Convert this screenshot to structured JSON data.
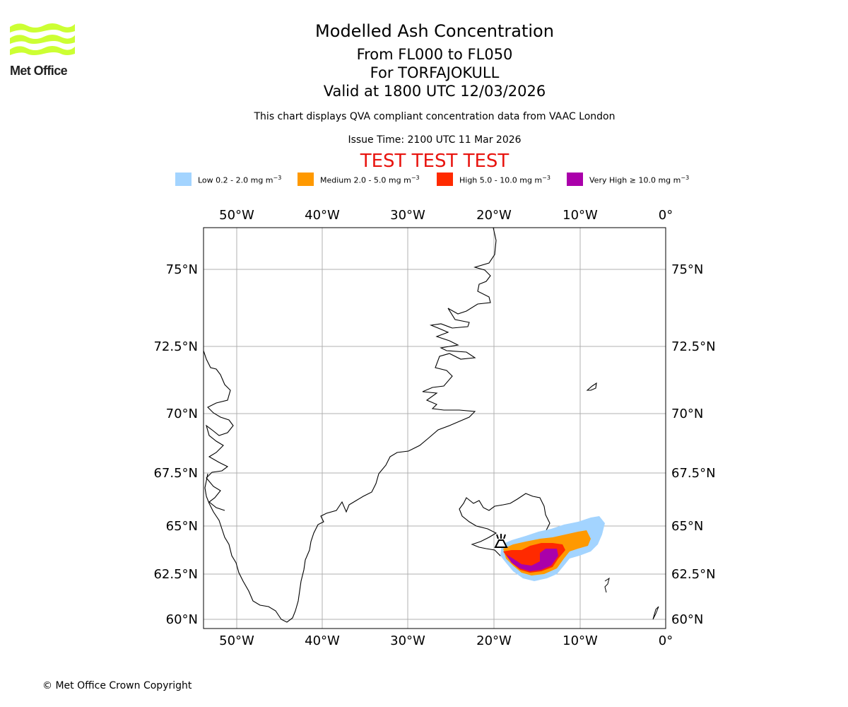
{
  "logo": {
    "text": "Met Office",
    "color": "#ccff33"
  },
  "header": {
    "title": "Modelled Ash Concentration",
    "level_range": "From FL000 to FL050",
    "volcano": "For TORFAJOKULL",
    "valid_time": "Valid at 1800 UTC 12/03/2026",
    "description": "This chart displays QVA compliant concentration data from VAAC London",
    "issue_time": "Issue Time: 2100 UTC 11 Mar 2026",
    "test_banner": "TEST TEST TEST"
  },
  "legend": [
    {
      "label": "Low 0.2 - 2.0 mg m",
      "unit_sup": "−3",
      "color": "#a3d4ff"
    },
    {
      "label": "Medium 2.0 - 5.0 mg m",
      "unit_sup": "−3",
      "color": "#ff9900"
    },
    {
      "label": "High 5.0 - 10.0 mg m",
      "unit_sup": "−3",
      "color": "#ff2a00"
    },
    {
      "label": "Very High ≥ 10.0 mg m",
      "unit_sup": "−3",
      "color": "#aa00aa"
    }
  ],
  "map": {
    "longitude_ticks": [
      "50°W",
      "40°W",
      "30°W",
      "20°W",
      "10°W",
      "0°"
    ],
    "latitude_ticks": [
      "75°N",
      "72.5°N",
      "70°N",
      "67.5°N",
      "65°N",
      "62.5°N",
      "60°N"
    ],
    "grid_color": "#b0b0b0",
    "volcano_marker": "volcano-icon"
  },
  "footer": {
    "copyright": "© Met Office Crown Copyright"
  }
}
